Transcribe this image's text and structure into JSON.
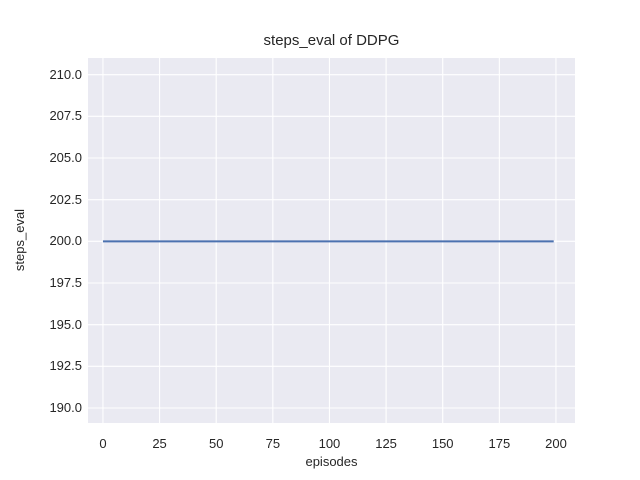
{
  "chart_data": {
    "type": "line",
    "title": "steps_eval of DDPG",
    "xlabel": "episodes",
    "ylabel": "steps_eval",
    "x_tick_labels": [
      "0",
      "25",
      "50",
      "75",
      "100",
      "125",
      "150",
      "175",
      "200"
    ],
    "y_tick_labels": [
      "190.0",
      "192.5",
      "195.0",
      "197.5",
      "200.0",
      "202.5",
      "205.0",
      "207.5",
      "210.0"
    ],
    "xlim": [
      -6.6,
      208.4
    ],
    "ylim": [
      189.1,
      211.0
    ],
    "grid": true,
    "legend_position": "none",
    "plot_background": "#EAEAF2",
    "grid_color": "#FFFFFF",
    "text_color": "#262626",
    "series": [
      {
        "name": "steps_eval",
        "color": "#4C72B0",
        "line_width": 2,
        "x": [
          0,
          199
        ],
        "y": [
          200.0,
          200.0
        ]
      }
    ]
  }
}
